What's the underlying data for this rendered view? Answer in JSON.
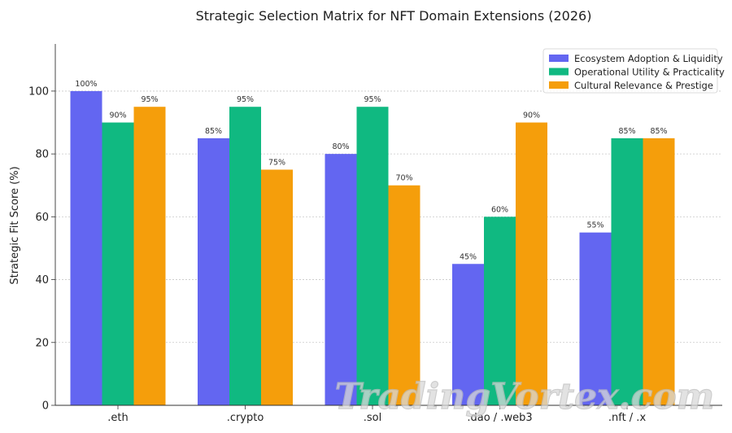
{
  "chart_data": {
    "type": "bar",
    "title": "Strategic Selection Matrix for NFT Domain Extensions (2026)",
    "xlabel": "",
    "ylabel": "Strategic Fit Score (%)",
    "ylim": [
      0,
      115
    ],
    "yticks": [
      0,
      20,
      40,
      60,
      80,
      100
    ],
    "grid": "y-dotted",
    "legend_position": "top-right",
    "categories": [
      ".eth",
      ".crypto",
      ".sol",
      ".dao / .web3",
      ".nft / .x"
    ],
    "series": [
      {
        "name": "Ecosystem Adoption & Liquidity",
        "color": "#6366f1",
        "values": [
          100,
          85,
          80,
          45,
          55
        ]
      },
      {
        "name": "Operational Utility & Practicality",
        "color": "#10b981",
        "values": [
          90,
          95,
          95,
          60,
          85
        ]
      },
      {
        "name": "Cultural Relevance & Prestige",
        "color": "#f59e0b",
        "values": [
          95,
          75,
          70,
          90,
          85
        ]
      }
    ],
    "value_suffix": "%"
  },
  "watermark": "TradingVortex.com"
}
